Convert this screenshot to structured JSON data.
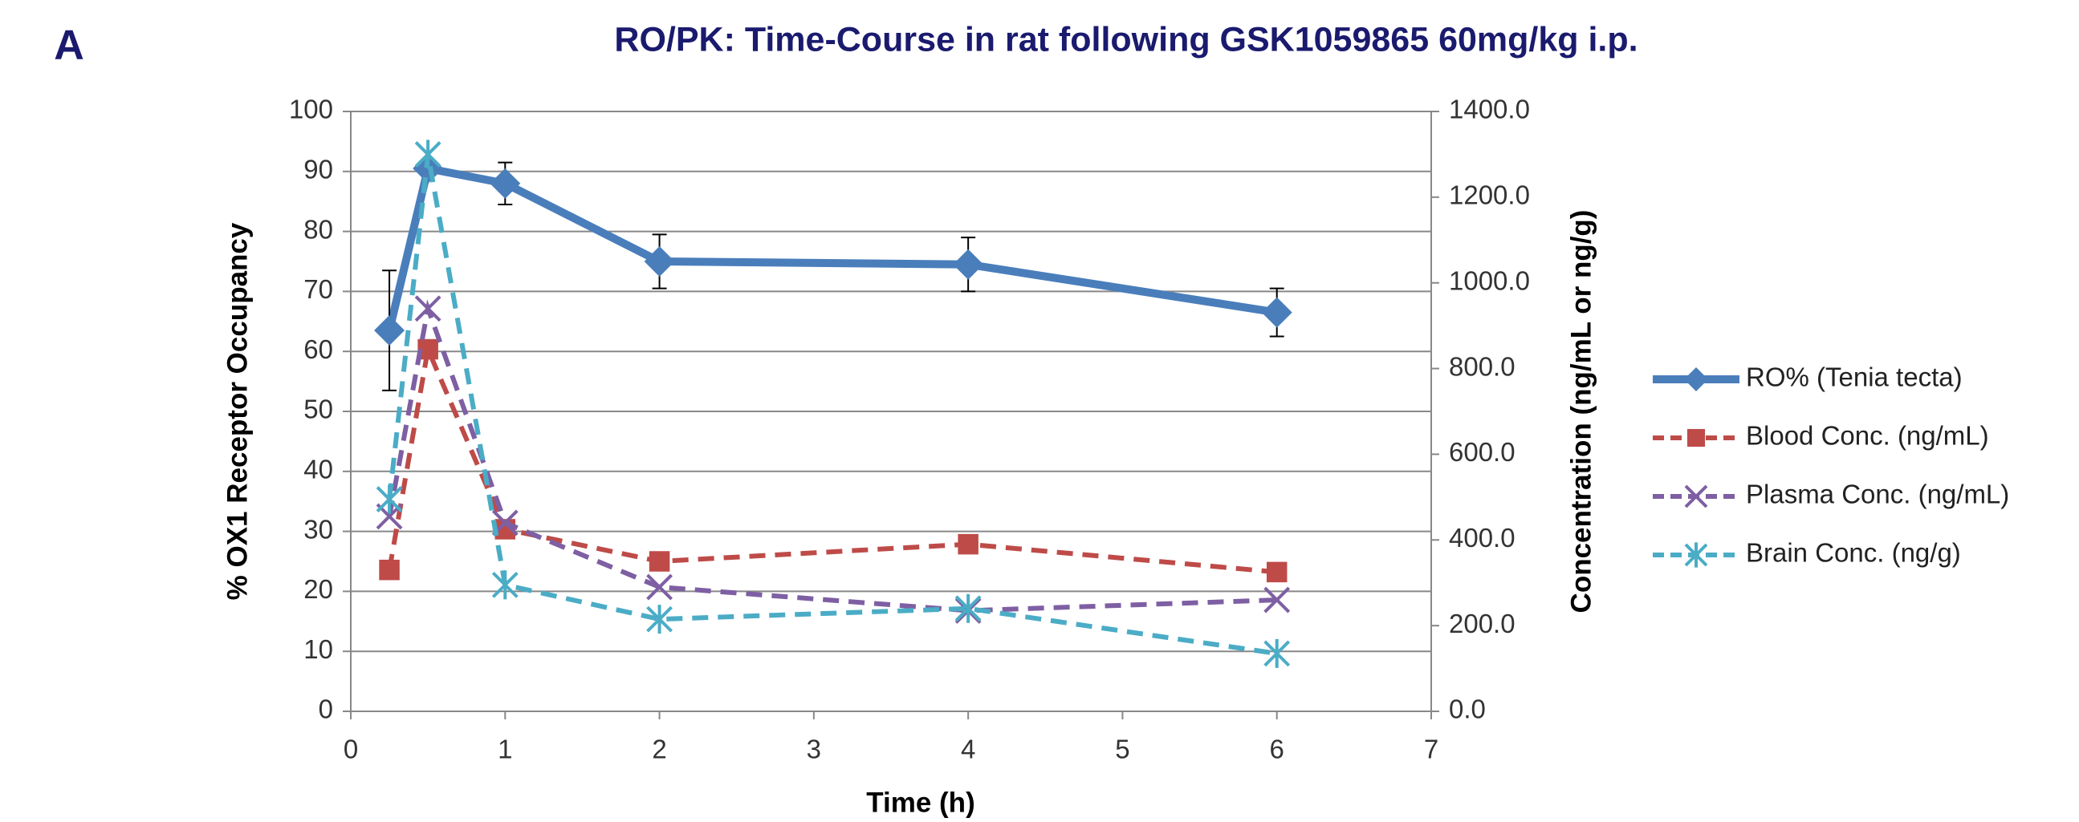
{
  "chart_data": {
    "type": "line",
    "panel_label": "A",
    "title": "RO/PK: Time-Course in rat following GSK1059865 60mg/kg i.p.",
    "x_label": "Time (h)",
    "y_label": "%  OX1 Receptor Occupancy",
    "y2_label": "Concentration (ng/mL or ng/g)",
    "x": [
      0.25,
      0.5,
      1,
      2,
      4,
      6
    ],
    "xlim": [
      0,
      7
    ],
    "xticks": [
      0,
      1,
      2,
      3,
      4,
      5,
      6,
      7
    ],
    "ylim": [
      0,
      100
    ],
    "yticks": [
      0,
      10,
      20,
      30,
      40,
      50,
      60,
      70,
      80,
      90,
      100
    ],
    "y2lim": [
      0,
      1400
    ],
    "y2ticks": [
      {
        "value": 0,
        "label": "0.0"
      },
      {
        "value": 200,
        "label": "200.0"
      },
      {
        "value": 400,
        "label": "400.0"
      },
      {
        "value": 600,
        "label": "600.0"
      },
      {
        "value": 800,
        "label": "800.0"
      },
      {
        "value": 1000,
        "label": "1000.0"
      },
      {
        "value": 1200,
        "label": "1200.0"
      },
      {
        "value": 1400,
        "label": "1400.0"
      }
    ],
    "grid": true,
    "legend": "right",
    "series": [
      {
        "name": "RO% (Tenia tecta)",
        "color": "#4a7ebb",
        "marker": "diamond",
        "dashed": false,
        "values": [
          63.5,
          90.5,
          88,
          75,
          74.5,
          66.5
        ],
        "errors": [
          10,
          1,
          3.5,
          4.5,
          4.5,
          4
        ]
      },
      {
        "name": "Blood Conc. (ng/mL)",
        "color": "#be4b48",
        "marker": "square",
        "dashed": true,
        "axis": "y2",
        "values": [
          330,
          845,
          425,
          350,
          390,
          325
        ]
      },
      {
        "name": "Plasma Conc. (ng/mL)",
        "color": "#7e5fa3",
        "marker": "x",
        "dashed": true,
        "axis": "y2",
        "values": [
          455,
          940,
          440,
          290,
          235,
          260
        ]
      },
      {
        "name": "Brain Conc. (ng/g)",
        "color": "#4bacc6",
        "marker": "star",
        "dashed": true,
        "axis": "y2",
        "values": [
          495,
          1300,
          295,
          215,
          240,
          135
        ]
      }
    ]
  }
}
